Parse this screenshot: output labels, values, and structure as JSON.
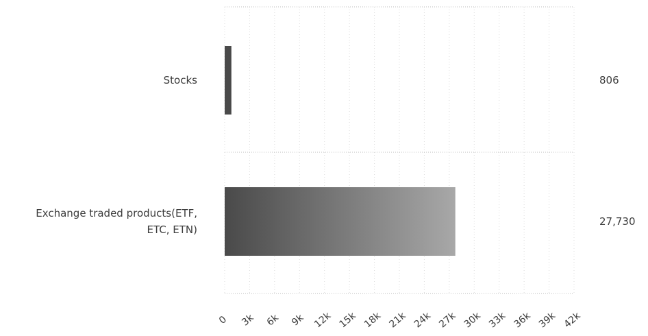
{
  "chart_data": {
    "type": "bar",
    "orientation": "horizontal",
    "categories": [
      "Stocks",
      "Exchange traded products(ETF, ETC, ETN)"
    ],
    "category_lines": [
      [
        "Stocks"
      ],
      [
        "Exchange traded products(ETF,",
        "ETC, ETN)"
      ]
    ],
    "values": [
      806,
      27730
    ],
    "value_labels": [
      "806",
      "27,730"
    ],
    "title": "",
    "xlabel": "",
    "ylabel": "",
    "xlim": [
      0,
      42000
    ],
    "x_ticks": [
      0,
      3000,
      6000,
      9000,
      12000,
      15000,
      18000,
      21000,
      24000,
      27000,
      30000,
      33000,
      36000,
      39000,
      42000
    ],
    "x_tick_labels": [
      "0",
      "3k",
      "6k",
      "9k",
      "12k",
      "15k",
      "18k",
      "21k",
      "24k",
      "27k",
      "30k",
      "33k",
      "36k",
      "39k",
      "42k"
    ],
    "grid": true,
    "legend": "none",
    "bar_colors": {
      "start": "#4a4a4a",
      "end": "#a8a8a8"
    }
  }
}
